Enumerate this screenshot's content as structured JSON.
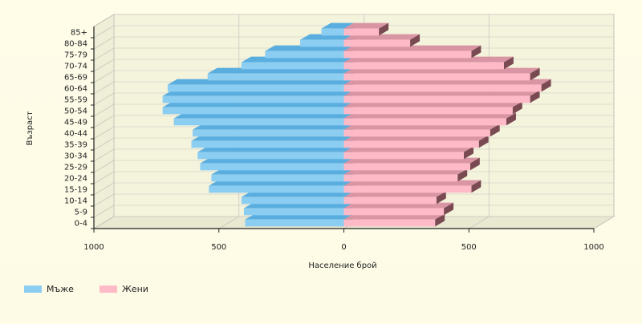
{
  "chart_data": {
    "type": "bar",
    "orientation": "horizontal",
    "categories": [
      "0-4",
      "5-9",
      "10-14",
      "15-19",
      "20-24",
      "25-29",
      "30-34",
      "35-39",
      "40-44",
      "45-49",
      "50-54",
      "55-59",
      "60-64",
      "65-69",
      "70-74",
      "75-79",
      "80-84",
      "85+"
    ],
    "series": [
      {
        "name": "Мъже",
        "color": "#8ccdf2",
        "values": [
          395,
          400,
          410,
          540,
          530,
          575,
          585,
          610,
          605,
          680,
          725,
          725,
          705,
          545,
          410,
          315,
          175,
          90
        ]
      },
      {
        "name": "Жени",
        "color": "#ffbac8",
        "values": [
          365,
          400,
          370,
          510,
          455,
          505,
          480,
          540,
          585,
          650,
          675,
          745,
          790,
          745,
          640,
          510,
          265,
          140
        ]
      }
    ],
    "xlabel": "Население брой",
    "ylabel": "Възраст",
    "xlim": [
      -1000,
      1000
    ],
    "xticks": [
      -1000,
      -500,
      0,
      500,
      1000
    ],
    "xtick_labels": [
      "1000",
      "500",
      "0",
      "500",
      "1000"
    ],
    "grid": true,
    "legend_position": "bottom-left"
  }
}
